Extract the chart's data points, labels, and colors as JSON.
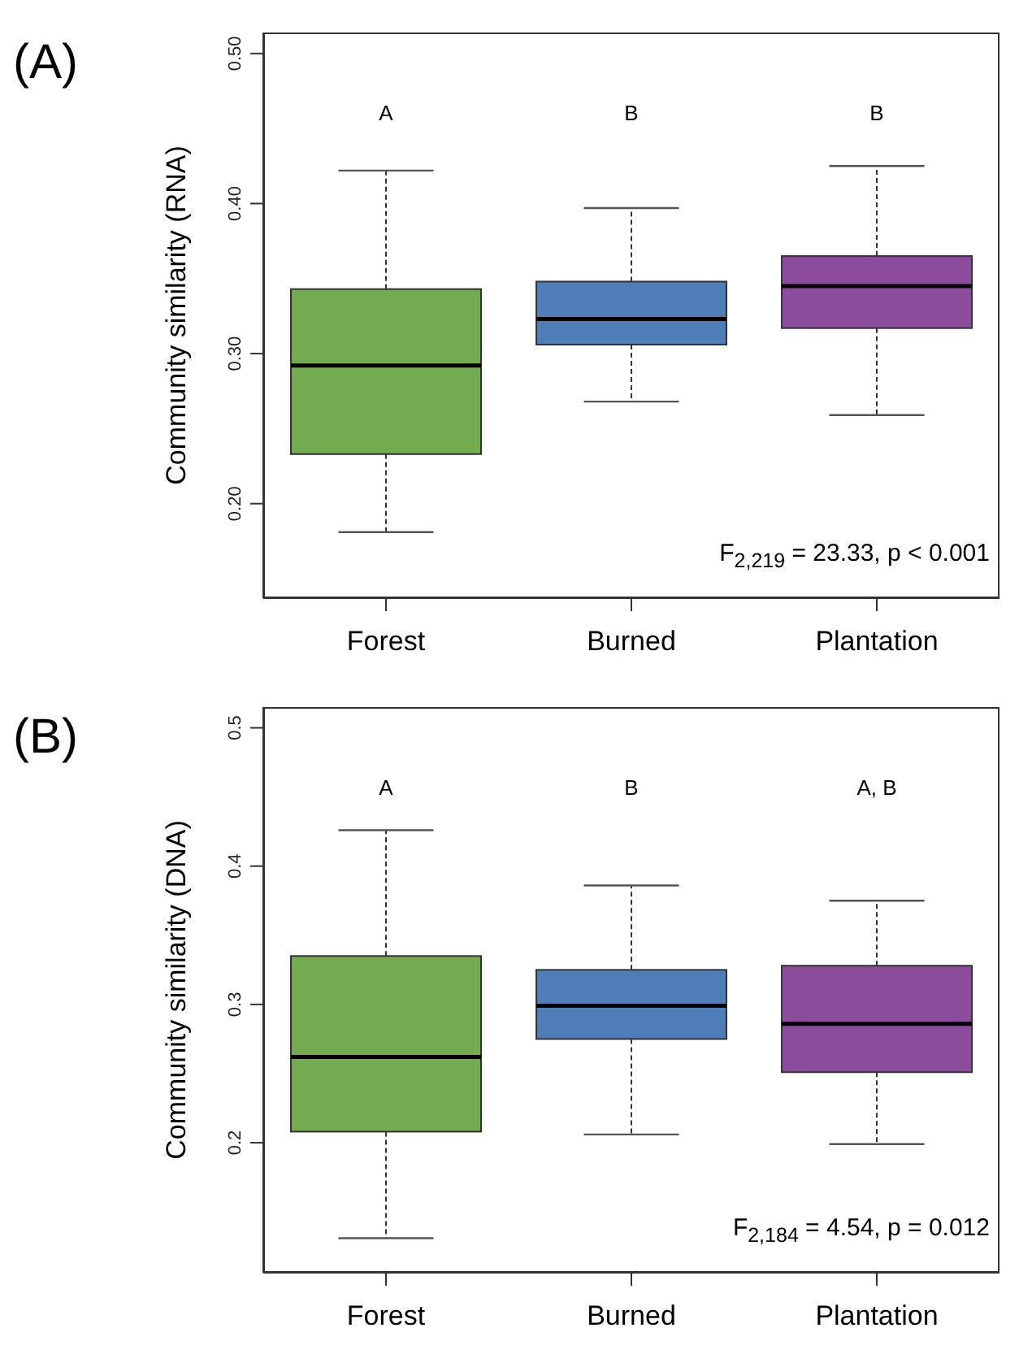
{
  "chart_data": [
    {
      "type": "box",
      "title": "(A)",
      "ylabel": "Community similarity (RNA)",
      "categories": [
        "Forest",
        "Burned",
        "Plantation"
      ],
      "colors": [
        "#75ab50",
        "#4f7db7",
        "#8c4c9e"
      ],
      "boxes": [
        {
          "low": 0.181,
          "q1": 0.233,
          "median": 0.292,
          "q3": 0.343,
          "high": 0.422
        },
        {
          "low": 0.268,
          "q1": 0.306,
          "median": 0.323,
          "q3": 0.348,
          "high": 0.397
        },
        {
          "low": 0.259,
          "q1": 0.317,
          "median": 0.345,
          "q3": 0.365,
          "high": 0.425
        }
      ],
      "ylim": [
        0.137,
        0.514
      ],
      "yticks": [
        {
          "value": 0.2,
          "label": "0.20"
        },
        {
          "value": 0.3,
          "label": "0.30"
        },
        {
          "value": 0.4,
          "label": "0.40"
        },
        {
          "value": 0.5,
          "label": "0.50"
        }
      ],
      "annotations": [
        "A",
        "B",
        "B",
        "F$_{2,219}$ = 23.33, p < 0.001"
      ]
    },
    {
      "type": "box",
      "title": "(B)",
      "ylabel": "Community similarity (DNA)",
      "categories": [
        "Forest",
        "Burned",
        "Plantation"
      ],
      "colors": [
        "#75ab50",
        "#4f7db7",
        "#8c4c9e"
      ],
      "boxes": [
        {
          "low": 0.131,
          "q1": 0.208,
          "median": 0.262,
          "q3": 0.335,
          "high": 0.426
        },
        {
          "low": 0.206,
          "q1": 0.275,
          "median": 0.299,
          "q3": 0.325,
          "high": 0.386
        },
        {
          "low": 0.199,
          "q1": 0.251,
          "median": 0.286,
          "q3": 0.328,
          "high": 0.375
        }
      ],
      "ylim": [
        0.106,
        0.515
      ],
      "yticks": [
        0.2,
        0.3,
        0.4,
        0.5
      ],
      "annotations": [
        "A",
        "B",
        "A, B",
        "F$_{2,184}$ = 4.54, p = 0.012"
      ]
    }
  ]
}
